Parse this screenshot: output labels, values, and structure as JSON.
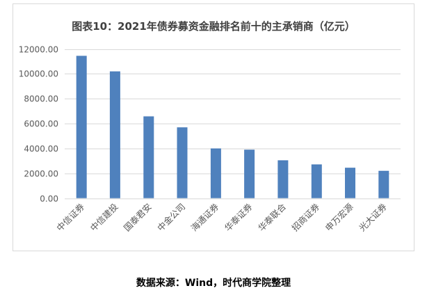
{
  "chart_data": {
    "type": "bar",
    "title": "图表10：2021年债券募资金融排名前十的主承销商（亿元）",
    "categories": [
      "中信证券",
      "中信建投",
      "国泰君安",
      "中金公司",
      "海通证券",
      "华泰证券",
      "华泰联合",
      "招商证券",
      "申万宏源",
      "光大证券"
    ],
    "values": [
      11450,
      10200,
      6580,
      5700,
      4000,
      3900,
      3050,
      2720,
      2450,
      2200
    ],
    "ylim": [
      0,
      12000
    ],
    "y_ticks": [
      0,
      2000,
      4000,
      6000,
      8000,
      10000,
      12000
    ],
    "y_tick_labels": [
      "0.00",
      "2000.00",
      "4000.00",
      "6000.00",
      "8000.00",
      "10000.00",
      "12000.00"
    ],
    "xlabel": "",
    "ylabel": "",
    "grid": true,
    "bar_color": "#4f81bd",
    "gridline_color": "#d9d9d9"
  },
  "source_note": "数据来源：Wind，时代商学院整理"
}
